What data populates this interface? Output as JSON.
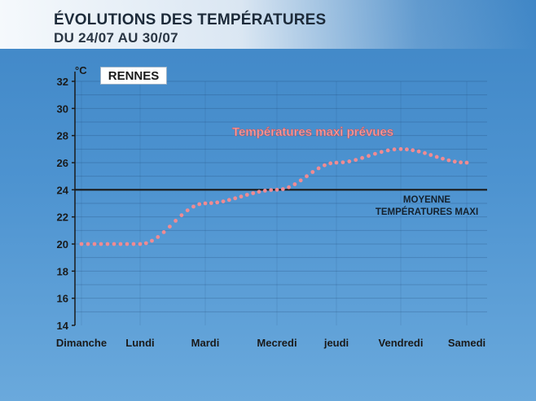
{
  "header": {
    "title": "ÉVOLUTIONS DES TEMPÉRATURES",
    "subtitle": "DU 24/07 AU 30/07"
  },
  "city": "RENNES",
  "colors": {
    "background": "#4a8fcc",
    "forecast_series": "#f08b92",
    "average_line": "#1a1a1a"
  },
  "chart_data": {
    "type": "line",
    "ylabel": "°C",
    "ylim": [
      14,
      32
    ],
    "yticks": [
      14,
      16,
      18,
      20,
      22,
      24,
      26,
      28,
      30,
      32
    ],
    "grid": true,
    "categories": [
      "Dimanche",
      "Lundi",
      "Mardi",
      "Mecredi",
      "jeudi",
      "Vendredi",
      "Samedi"
    ],
    "series": [
      {
        "name": "Températures maxi prévues",
        "style": "dotted",
        "values": [
          20,
          20,
          23,
          24,
          26,
          27,
          26
        ]
      },
      {
        "name": "MOYENNE TEMPÉRATURES MAXI",
        "style": "solid",
        "values": [
          24,
          24,
          24,
          24,
          24,
          24,
          24
        ]
      }
    ],
    "annotations": {
      "series_label": "Températures maxi prévues",
      "average_line_1": "MOYENNE",
      "average_line_2": "TEMPÉRATURES MAXI"
    }
  }
}
